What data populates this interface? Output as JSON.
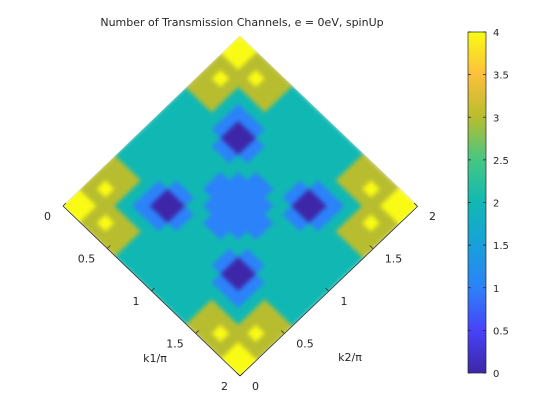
{
  "chart_data": {
    "type": "heatmap",
    "title": "Number of Transmission Channels, e = 0eV, spinUp",
    "xlabel": "k1/π",
    "ylabel": "k2/π",
    "xlim": [
      0,
      2
    ],
    "ylim": [
      0,
      2
    ],
    "x_ticks": [
      "0",
      "0.5",
      "1",
      "1.5",
      "2"
    ],
    "y_ticks": [
      "0",
      "0.5",
      "1",
      "1.5",
      "2"
    ],
    "colorbar": {
      "min": 0,
      "max": 4,
      "ticks": [
        "0",
        "0.5",
        "1",
        "1.5",
        "2",
        "2.5",
        "3",
        "3.5",
        "4"
      ],
      "colormap": "parula"
    },
    "grid": 20,
    "values": [
      [
        4,
        4,
        3,
        3,
        3,
        3,
        2,
        2,
        2,
        2,
        2,
        2,
        2,
        2,
        3,
        3,
        3,
        3,
        4,
        4
      ],
      [
        4,
        4,
        3,
        4,
        3,
        3,
        2,
        2,
        2,
        2,
        2,
        2,
        2,
        2,
        3,
        3,
        4,
        3,
        4,
        4
      ],
      [
        3,
        3,
        3,
        3,
        3,
        3,
        2,
        2,
        2,
        2,
        2,
        2,
        2,
        2,
        3,
        3,
        3,
        3,
        3,
        3
      ],
      [
        3,
        4,
        3,
        2,
        2,
        2,
        2,
        2,
        2,
        2,
        2,
        2,
        2,
        2,
        2,
        2,
        2,
        3,
        4,
        3
      ],
      [
        3,
        3,
        3,
        2,
        1,
        1,
        1,
        2,
        2,
        2,
        2,
        2,
        2,
        1,
        1,
        1,
        2,
        3,
        3,
        3
      ],
      [
        3,
        3,
        3,
        2,
        1,
        0,
        0,
        1,
        2,
        2,
        2,
        2,
        1,
        0,
        0,
        1,
        2,
        3,
        3,
        3
      ],
      [
        2,
        2,
        2,
        2,
        1,
        0,
        0,
        1,
        2,
        2,
        2,
        2,
        1,
        0,
        0,
        1,
        2,
        2,
        2,
        2
      ],
      [
        2,
        2,
        2,
        2,
        2,
        1,
        1,
        2,
        2,
        1,
        1,
        2,
        2,
        1,
        1,
        2,
        2,
        2,
        2,
        2
      ],
      [
        2,
        2,
        2,
        2,
        2,
        2,
        2,
        2,
        1,
        1,
        1,
        1,
        2,
        2,
        2,
        2,
        2,
        2,
        2,
        2
      ],
      [
        2,
        2,
        2,
        2,
        2,
        2,
        2,
        1,
        1,
        1,
        1,
        1,
        1,
        2,
        2,
        2,
        2,
        2,
        2,
        2
      ],
      [
        2,
        2,
        2,
        2,
        2,
        2,
        2,
        1,
        1,
        1,
        1,
        1,
        1,
        2,
        2,
        2,
        2,
        2,
        2,
        2
      ],
      [
        2,
        2,
        2,
        2,
        2,
        2,
        2,
        2,
        1,
        1,
        1,
        1,
        2,
        2,
        2,
        2,
        2,
        2,
        2,
        2
      ],
      [
        2,
        2,
        2,
        2,
        2,
        1,
        1,
        2,
        2,
        1,
        1,
        2,
        2,
        1,
        1,
        2,
        2,
        2,
        2,
        2
      ],
      [
        2,
        2,
        2,
        2,
        1,
        0,
        0,
        1,
        2,
        2,
        2,
        2,
        1,
        0,
        0,
        1,
        2,
        2,
        2,
        2
      ],
      [
        3,
        3,
        3,
        2,
        1,
        0,
        0,
        1,
        2,
        2,
        2,
        2,
        1,
        0,
        0,
        1,
        2,
        3,
        3,
        3
      ],
      [
        3,
        3,
        3,
        2,
        1,
        1,
        1,
        2,
        2,
        2,
        2,
        2,
        2,
        1,
        1,
        1,
        2,
        3,
        3,
        3
      ],
      [
        3,
        4,
        3,
        2,
        2,
        2,
        2,
        2,
        2,
        2,
        2,
        2,
        2,
        2,
        2,
        2,
        2,
        3,
        4,
        3
      ],
      [
        3,
        3,
        3,
        3,
        3,
        3,
        2,
        2,
        2,
        2,
        2,
        2,
        2,
        2,
        3,
        3,
        3,
        3,
        3,
        3
      ],
      [
        4,
        4,
        3,
        4,
        3,
        3,
        2,
        2,
        2,
        2,
        2,
        2,
        2,
        2,
        3,
        3,
        4,
        3,
        4,
        4
      ],
      [
        4,
        4,
        3,
        3,
        3,
        3,
        2,
        2,
        2,
        2,
        2,
        2,
        2,
        2,
        3,
        3,
        3,
        3,
        4,
        4
      ]
    ]
  }
}
